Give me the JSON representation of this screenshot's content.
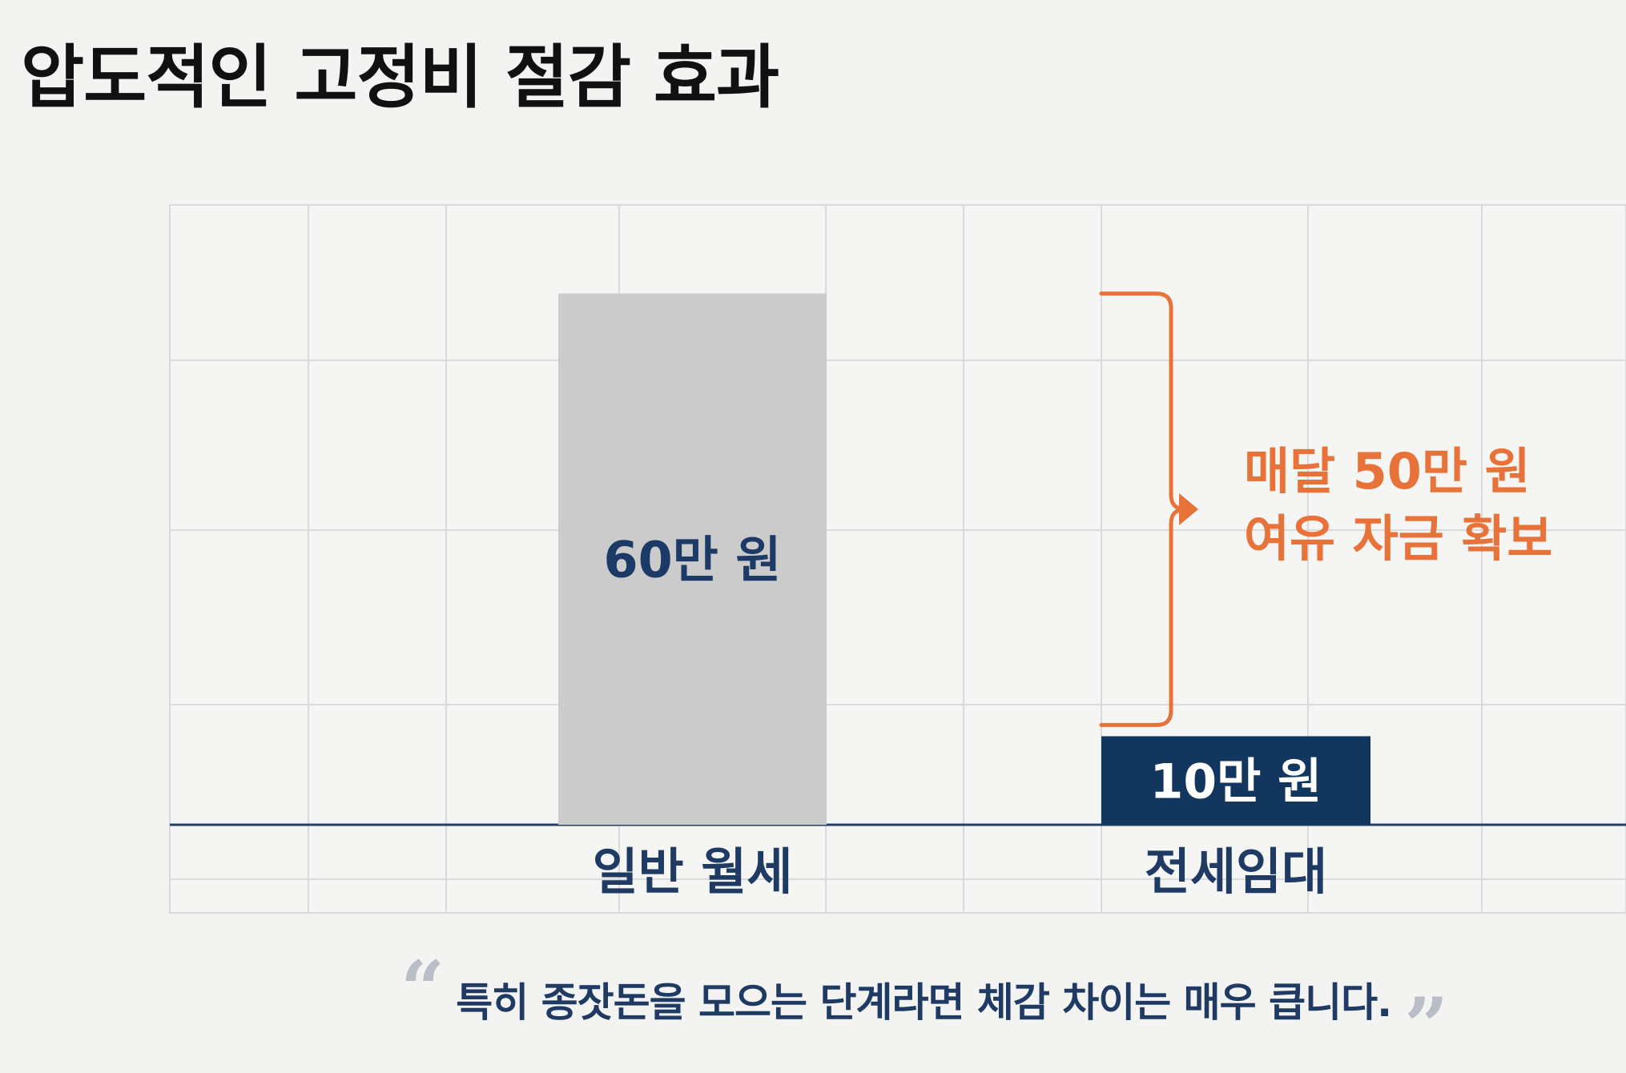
{
  "page": {
    "title": "압도적인 고정비 절감 효과"
  },
  "chart_data": {
    "type": "bar",
    "categories": [
      "일반 월세",
      "전세임대"
    ],
    "values": [
      60,
      10
    ],
    "value_labels": [
      "60만 원",
      "10만 원"
    ],
    "ylim": [
      0,
      70
    ],
    "grid": true,
    "colors": {
      "bar_1": "#cbcbcb",
      "bar_2": "#13365e",
      "label_on_light": "#1b3a66",
      "label_on_dark": "#ffffff",
      "category_label": "#1f3a63",
      "annotation": "#e8733a",
      "grid": "#d8dadd",
      "baseline": "#23406b"
    },
    "annotation": {
      "from_value": 60,
      "to_value": 10,
      "lines": [
        "매달 50만 원",
        "여유 자금 확보"
      ]
    }
  },
  "footer": {
    "quote_open": "“",
    "quote": "특히 종잣돈을 모으는 단계라면 체감 차이는 매우 큽니다.",
    "quote_close": "”"
  }
}
